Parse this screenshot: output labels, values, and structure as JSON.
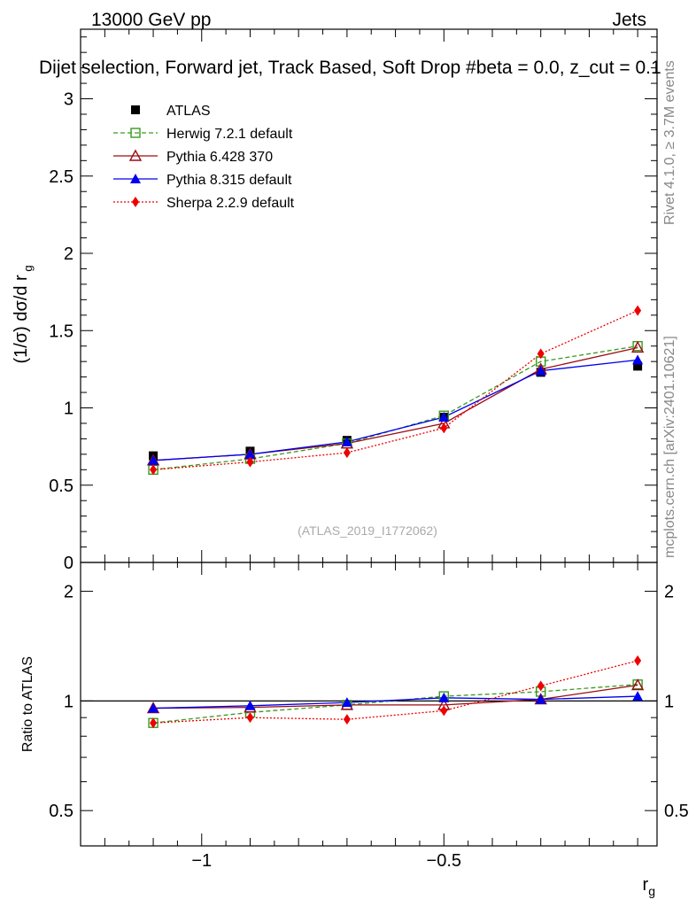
{
  "header": {
    "left": "13000 GeV pp",
    "right": "Jets",
    "title": "Dijet selection, Forward jet, Track Based, Soft Drop #beta = 0.0, z_cut = 0.1"
  },
  "side_labels": {
    "rivet": "Rivet 4.1.0, ≥ 3.7M events",
    "mcplots": "mcplots.cern.ch [arXiv:2401.10621]"
  },
  "watermark": "(ATLAS_2019_I1772062)",
  "chart_data": [
    {
      "type": "line",
      "panel": "main",
      "ylabel": "(1/σ) dσ/d r_g",
      "xlim": [
        -1.25,
        -0.06
      ],
      "ylim": [
        0,
        3.45
      ],
      "x": [
        -1.1,
        -0.9,
        -0.7,
        -0.5,
        -0.3,
        -0.1
      ],
      "yticks_major": [
        0,
        0.5,
        1,
        1.5,
        2,
        2.5,
        3
      ],
      "ytick_labels": [
        "0",
        "0.5",
        "1",
        "1.5",
        "2",
        "2.5",
        "3"
      ],
      "series": [
        {
          "name": "ATLAS",
          "color": "#000000",
          "marker": "square",
          "line": "none",
          "values": [
            0.69,
            0.72,
            0.79,
            0.94,
            1.23,
            1.27
          ]
        },
        {
          "name": "Herwig 7.2.1 default",
          "color": "#3a9a1e",
          "marker": "open-square",
          "line": "dashed",
          "values": [
            0.6,
            0.67,
            0.77,
            0.95,
            1.3,
            1.4
          ]
        },
        {
          "name": "Pythia 6.428 370",
          "color": "#9b0c12",
          "marker": "open-triangle",
          "line": "solid",
          "values": [
            0.66,
            0.7,
            0.77,
            0.9,
            1.25,
            1.39
          ]
        },
        {
          "name": "Pythia 8.315 default",
          "color": "#0000ee",
          "marker": "triangle",
          "line": "solid",
          "values": [
            0.66,
            0.7,
            0.78,
            0.94,
            1.24,
            1.31
          ]
        },
        {
          "name": "Sherpa 2.2.9 default",
          "color": "#ee0000",
          "marker": "diamond",
          "line": "dotted",
          "values": [
            0.6,
            0.65,
            0.71,
            0.87,
            1.35,
            1.63
          ]
        }
      ]
    },
    {
      "type": "line",
      "panel": "ratio",
      "ylabel": "Ratio to ATLAS",
      "xlabel": "r_g",
      "ylim": [
        0.4,
        2.4
      ],
      "yscale": "log",
      "x": [
        -1.1,
        -0.9,
        -0.7,
        -0.5,
        -0.3,
        -0.1
      ],
      "yticks_labeled": [
        0.5,
        1,
        2
      ],
      "ytick_labels": [
        "0.5",
        "1",
        "2"
      ],
      "xticks_labeled": [
        -1,
        -0.5
      ],
      "xtick_labels": [
        "−1",
        "−0.5"
      ],
      "series": [
        {
          "name": "Herwig 7.2.1 default",
          "color": "#3a9a1e",
          "marker": "open-square",
          "line": "dashed",
          "values": [
            0.87,
            0.93,
            0.975,
            1.03,
            1.06,
            1.11
          ]
        },
        {
          "name": "Pythia 6.428 370",
          "color": "#9b0c12",
          "marker": "open-triangle",
          "line": "solid",
          "values": [
            0.955,
            0.96,
            0.975,
            0.975,
            1.01,
            1.105
          ]
        },
        {
          "name": "Pythia 8.315 default",
          "color": "#0000ee",
          "marker": "triangle",
          "line": "solid",
          "values": [
            0.955,
            0.97,
            0.99,
            1.02,
            1.01,
            1.03
          ]
        },
        {
          "name": "Sherpa 2.2.9 default",
          "color": "#ee0000",
          "marker": "diamond",
          "line": "dotted",
          "values": [
            0.87,
            0.9,
            0.89,
            0.94,
            1.1,
            1.29
          ]
        }
      ]
    }
  ]
}
